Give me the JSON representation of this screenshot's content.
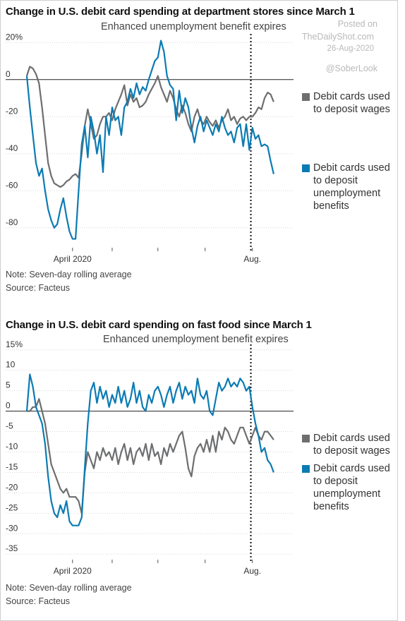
{
  "watermark": {
    "posted_on": "Posted on",
    "site": "TheDailyShot.com",
    "date": "26-Aug-2020",
    "handle": "@SoberLook"
  },
  "colors": {
    "wages": "#6d6e70",
    "unemployment": "#0b7bb3",
    "grid": "#d7d7d7",
    "zero": "#222222"
  },
  "chart_data": [
    {
      "type": "line",
      "title": "Change in U.S. debit card spending at department stores since March 1",
      "annotation": "Enhanced unemployment benefit expires",
      "note": "Note: Seven-day rolling average",
      "source": "Source: Facteus",
      "y_ticks": [
        "20%",
        "0",
        "-20",
        "-40",
        "-60",
        "-80"
      ],
      "x_ticks": [
        "April 2020",
        "Aug."
      ],
      "ylim": [
        -90,
        22
      ],
      "xlim": [
        0,
        175
      ],
      "x_tick_values": [
        30,
        56,
        86,
        117,
        148
      ],
      "vline_x": 147,
      "grid": true,
      "legend_position": "right",
      "series": [
        {
          "name": "Debit cards used to deposit wages",
          "color": "#6d6e70",
          "x": [
            0,
            2,
            4,
            6,
            8,
            10,
            12,
            14,
            16,
            18,
            20,
            22,
            24,
            26,
            28,
            30,
            32,
            34,
            36,
            38,
            40,
            42,
            44,
            46,
            48,
            50,
            52,
            54,
            56,
            58,
            60,
            62,
            64,
            66,
            68,
            70,
            72,
            74,
            76,
            78,
            80,
            82,
            84,
            86,
            88,
            90,
            92,
            94,
            96,
            98,
            100,
            102,
            104,
            106,
            108,
            110,
            112,
            114,
            116,
            118,
            120,
            122,
            124,
            126,
            128,
            130,
            132,
            134,
            136,
            138,
            140,
            142,
            144,
            146,
            148,
            150,
            152,
            154,
            156,
            158,
            160,
            162
          ],
          "y": [
            2,
            7,
            6,
            3,
            -2,
            -15,
            -30,
            -45,
            -52,
            -56,
            -57,
            -58,
            -57,
            -55,
            -54,
            -52,
            -51,
            -53,
            -40,
            -25,
            -16,
            -24,
            -32,
            -30,
            -24,
            -20,
            -20,
            -18,
            -22,
            -16,
            -12,
            -8,
            -3,
            -14,
            -8,
            -12,
            -10,
            -15,
            -14,
            -12,
            -8,
            -5,
            -2,
            2,
            -4,
            -8,
            -12,
            -6,
            -10,
            -16,
            -20,
            -14,
            -18,
            -24,
            -28,
            -20,
            -16,
            -22,
            -24,
            -20,
            -23,
            -25,
            -22,
            -26,
            -22,
            -20,
            -16,
            -22,
            -20,
            -24,
            -21,
            -20,
            -22,
            -20,
            -20,
            -18,
            -15,
            -16,
            -10,
            -7,
            -8,
            -12
          ]
        },
        {
          "name": "Debit cards used to deposit unemployment benefits",
          "color": "#0b7bb3",
          "x": [
            0,
            2,
            4,
            6,
            8,
            10,
            12,
            14,
            16,
            18,
            20,
            22,
            24,
            26,
            28,
            30,
            32,
            34,
            36,
            38,
            40,
            42,
            44,
            46,
            48,
            50,
            52,
            54,
            56,
            58,
            60,
            62,
            64,
            66,
            68,
            70,
            72,
            74,
            76,
            78,
            80,
            82,
            84,
            86,
            88,
            90,
            92,
            94,
            96,
            98,
            100,
            102,
            104,
            106,
            108,
            110,
            112,
            114,
            116,
            118,
            120,
            122,
            124,
            126,
            128,
            130,
            132,
            134,
            136,
            138,
            140,
            142,
            144,
            146,
            148,
            150,
            152,
            154,
            156,
            158,
            160,
            162
          ],
          "y": [
            2,
            -15,
            -30,
            -45,
            -52,
            -48,
            -60,
            -70,
            -76,
            -80,
            -78,
            -70,
            -64,
            -74,
            -82,
            -86,
            -86,
            -60,
            -35,
            -25,
            -42,
            -20,
            -28,
            -40,
            -30,
            -50,
            -20,
            -30,
            -15,
            -22,
            -20,
            -30,
            -15,
            -12,
            -5,
            -10,
            -2,
            -8,
            -4,
            -6,
            0,
            5,
            10,
            12,
            21,
            15,
            2,
            -3,
            -5,
            -22,
            -6,
            -18,
            -10,
            -15,
            -26,
            -34,
            -25,
            -20,
            -28,
            -22,
            -26,
            -30,
            -24,
            -28,
            -20,
            -26,
            -30,
            -28,
            -34,
            -26,
            -24,
            -36,
            -24,
            -38,
            -26,
            -32,
            -30,
            -36,
            -35,
            -36,
            -44,
            -51
          ]
        }
      ]
    },
    {
      "type": "line",
      "title": "Change in U.S. debit card spending on fast food since March 1",
      "annotation": "Enhanced unemployment benefit expires",
      "note": "Note: Seven-day rolling average",
      "source": "Source: Facteus",
      "y_ticks": [
        "15%",
        "10",
        "5",
        "0",
        "-5",
        "-10",
        "-15",
        "-20",
        "-25",
        "-30",
        "-35"
      ],
      "x_ticks": [
        "April 2020",
        "Aug."
      ],
      "ylim": [
        -36,
        16
      ],
      "xlim": [
        0,
        175
      ],
      "x_tick_values": [
        30,
        56,
        86,
        117,
        148
      ],
      "vline_x": 147,
      "grid": true,
      "legend_position": "right",
      "series": [
        {
          "name": "Debit cards used to deposit wages",
          "color": "#6d6e70",
          "x": [
            0,
            2,
            4,
            6,
            8,
            10,
            12,
            14,
            16,
            18,
            20,
            22,
            24,
            26,
            28,
            30,
            32,
            34,
            36,
            38,
            40,
            42,
            44,
            46,
            48,
            50,
            52,
            54,
            56,
            58,
            60,
            62,
            64,
            66,
            68,
            70,
            72,
            74,
            76,
            78,
            80,
            82,
            84,
            86,
            88,
            90,
            92,
            94,
            96,
            98,
            100,
            102,
            104,
            106,
            108,
            110,
            112,
            114,
            116,
            118,
            120,
            122,
            124,
            126,
            128,
            130,
            132,
            134,
            136,
            138,
            140,
            142,
            144,
            146,
            148,
            150,
            152,
            154,
            156,
            158,
            160,
            162
          ],
          "y": [
            0,
            0,
            1,
            1,
            3,
            0,
            -3,
            -8,
            -13,
            -15,
            -17,
            -19,
            -20,
            -19,
            -21,
            -21,
            -21,
            -22,
            -25,
            -15,
            -10,
            -12,
            -14,
            -10,
            -12,
            -9,
            -11,
            -10,
            -12,
            -9,
            -13,
            -10,
            -8,
            -12,
            -9,
            -13,
            -10,
            -9,
            -11,
            -8,
            -12,
            -8,
            -11,
            -10,
            -13,
            -9,
            -11,
            -8,
            -10,
            -8,
            -6,
            -5,
            -9,
            -14,
            -16,
            -11,
            -9,
            -8,
            -10,
            -7,
            -10,
            -6,
            -10,
            -5,
            -7,
            -4,
            -5,
            -7,
            -8,
            -6,
            -4,
            -4,
            -6,
            -8,
            -6,
            -4,
            -6,
            -7,
            -5,
            -5,
            -6,
            -7
          ]
        },
        {
          "name": "Debit cards used to deposit unemployment benefits",
          "color": "#0b7bb3",
          "x": [
            0,
            2,
            4,
            6,
            8,
            10,
            12,
            14,
            16,
            18,
            20,
            22,
            24,
            26,
            28,
            30,
            32,
            34,
            36,
            38,
            40,
            42,
            44,
            46,
            48,
            50,
            52,
            54,
            56,
            58,
            60,
            62,
            64,
            66,
            68,
            70,
            72,
            74,
            76,
            78,
            80,
            82,
            84,
            86,
            88,
            90,
            92,
            94,
            96,
            98,
            100,
            102,
            104,
            106,
            108,
            110,
            112,
            114,
            116,
            118,
            120,
            122,
            124,
            126,
            128,
            130,
            132,
            134,
            136,
            138,
            140,
            142,
            144,
            146,
            148,
            150,
            152,
            154,
            156,
            158,
            160,
            162
          ],
          "y": [
            0,
            9,
            6,
            1,
            -1,
            -3,
            -8,
            -16,
            -22,
            -25,
            -26,
            -23,
            -25,
            -22,
            -27,
            -28,
            -28,
            -28,
            -26,
            -14,
            -3,
            5,
            7,
            2,
            6,
            3,
            5,
            1,
            4,
            2,
            6,
            2,
            5,
            1,
            3,
            7,
            2,
            5,
            1,
            0,
            4,
            2,
            5,
            6,
            4,
            1,
            4,
            6,
            2,
            5,
            7,
            3,
            6,
            4,
            5,
            2,
            8,
            4,
            3,
            5,
            0,
            -1,
            3,
            7,
            5,
            6,
            8,
            6,
            7,
            6,
            8,
            7,
            5,
            6,
            1,
            -3,
            -6,
            -10,
            -9,
            -12,
            -13,
            -15
          ]
        }
      ]
    }
  ]
}
